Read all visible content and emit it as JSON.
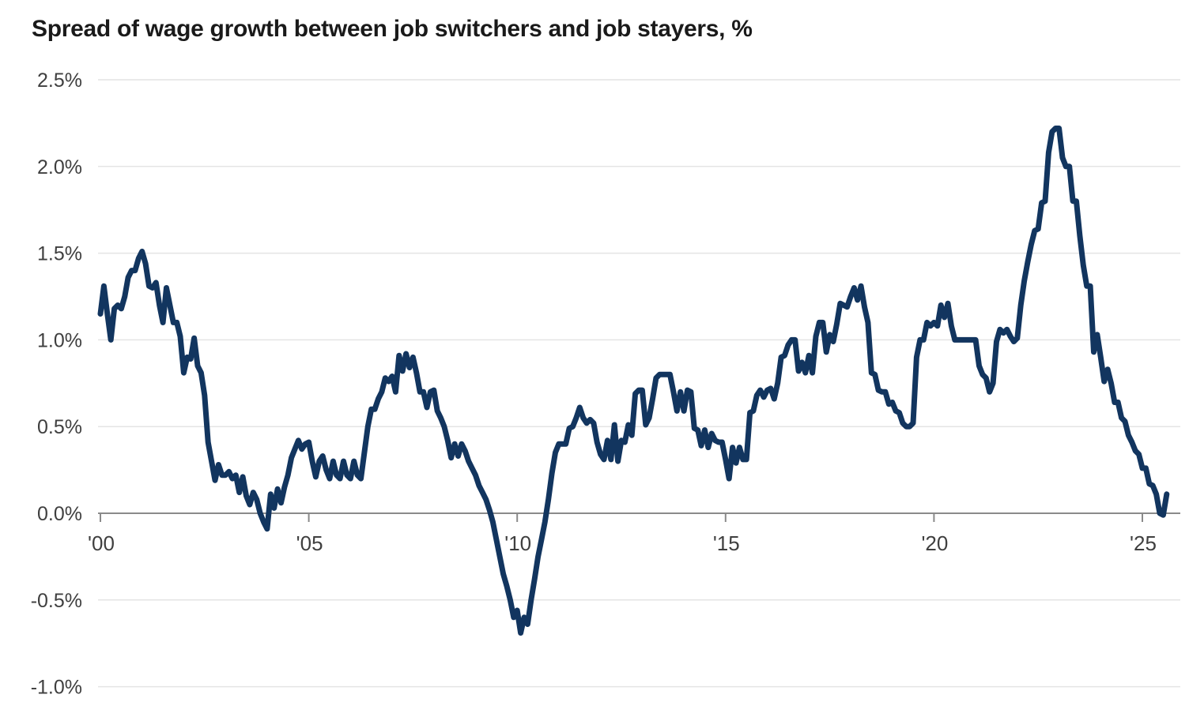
{
  "title": "Spread of wage growth between job switchers and job stayers, %",
  "colors": {
    "line": "#12355f",
    "gridline": "#e4e4e4",
    "axis_line": "#8a8a8a",
    "tick_label": "#3f3f3f",
    "title_text": "#1a1a1a",
    "background": "#ffffff"
  },
  "chart_data": {
    "type": "line",
    "title": "Spread of wage growth between job switchers and job stayers, %",
    "xlabel": "",
    "ylabel": "",
    "grid": true,
    "legend": "none",
    "x_axis": {
      "tick_labels": [
        "'00",
        "'05",
        "'10",
        "'15",
        "'20",
        "'25"
      ],
      "tick_years": [
        2000,
        2005,
        2010,
        2015,
        2020,
        2025
      ],
      "range": [
        2000,
        2025.6
      ]
    },
    "y_axis": {
      "tick_labels": [
        "2.5%",
        "2.0%",
        "1.5%",
        "1.0%",
        "0.5%",
        "0.0%",
        "-0.5%",
        "-1.0%"
      ],
      "tick_values": [
        2.5,
        2.0,
        1.5,
        1.0,
        0.5,
        0.0,
        -0.5,
        -1.0
      ],
      "range": [
        -1.0,
        2.5
      ],
      "unit": "%"
    },
    "series": [
      {
        "name": "Spread of wage growth between job switchers and job stayers",
        "color": "#12355f",
        "x_start_year": 2000,
        "points_per_year": 12,
        "values": [
          1.15,
          1.31,
          1.15,
          1.0,
          1.18,
          1.2,
          1.18,
          1.25,
          1.36,
          1.4,
          1.4,
          1.47,
          1.51,
          1.44,
          1.31,
          1.3,
          1.33,
          1.2,
          1.1,
          1.3,
          1.2,
          1.1,
          1.1,
          1.02,
          0.81,
          0.9,
          0.89,
          1.01,
          0.85,
          0.81,
          0.68,
          0.41,
          0.3,
          0.19,
          0.28,
          0.22,
          0.22,
          0.24,
          0.2,
          0.22,
          0.12,
          0.21,
          0.1,
          0.05,
          0.12,
          0.08,
          0.0,
          -0.05,
          -0.09,
          0.11,
          0.03,
          0.14,
          0.06,
          0.15,
          0.22,
          0.32,
          0.37,
          0.42,
          0.37,
          0.4,
          0.41,
          0.3,
          0.21,
          0.3,
          0.33,
          0.25,
          0.2,
          0.3,
          0.22,
          0.2,
          0.3,
          0.22,
          0.2,
          0.3,
          0.22,
          0.2,
          0.35,
          0.5,
          0.6,
          0.6,
          0.66,
          0.7,
          0.78,
          0.76,
          0.79,
          0.7,
          0.91,
          0.82,
          0.92,
          0.84,
          0.9,
          0.81,
          0.7,
          0.7,
          0.61,
          0.7,
          0.71,
          0.59,
          0.55,
          0.5,
          0.42,
          0.32,
          0.4,
          0.33,
          0.4,
          0.36,
          0.3,
          0.26,
          0.22,
          0.16,
          0.12,
          0.08,
          0.02,
          -0.05,
          -0.15,
          -0.25,
          -0.35,
          -0.42,
          -0.5,
          -0.6,
          -0.56,
          -0.69,
          -0.6,
          -0.64,
          -0.5,
          -0.38,
          -0.25,
          -0.15,
          -0.05,
          0.08,
          0.23,
          0.35,
          0.4,
          0.4,
          0.4,
          0.49,
          0.5,
          0.55,
          0.61,
          0.55,
          0.52,
          0.54,
          0.52,
          0.41,
          0.34,
          0.31,
          0.42,
          0.31,
          0.51,
          0.3,
          0.42,
          0.41,
          0.51,
          0.45,
          0.69,
          0.71,
          0.71,
          0.51,
          0.55,
          0.66,
          0.78,
          0.8,
          0.8,
          0.8,
          0.8,
          0.7,
          0.59,
          0.7,
          0.59,
          0.71,
          0.7,
          0.49,
          0.48,
          0.39,
          0.48,
          0.38,
          0.46,
          0.42,
          0.41,
          0.41,
          0.31,
          0.2,
          0.38,
          0.29,
          0.38,
          0.31,
          0.31,
          0.58,
          0.59,
          0.68,
          0.71,
          0.67,
          0.71,
          0.72,
          0.66,
          0.75,
          0.9,
          0.91,
          0.97,
          1.0,
          1.0,
          0.82,
          0.87,
          0.81,
          0.91,
          0.81,
          1.02,
          1.1,
          1.1,
          0.93,
          1.03,
          0.99,
          1.09,
          1.21,
          1.2,
          1.19,
          1.25,
          1.3,
          1.23,
          1.31,
          1.19,
          1.1,
          0.81,
          0.8,
          0.71,
          0.7,
          0.7,
          0.63,
          0.64,
          0.59,
          0.58,
          0.52,
          0.5,
          0.5,
          0.52,
          0.9,
          1.0,
          1.0,
          1.1,
          1.08,
          1.1,
          1.08,
          1.2,
          1.13,
          1.21,
          1.08,
          1.0,
          1.0,
          1.0,
          1.0,
          1.0,
          1.0,
          1.0,
          0.85,
          0.8,
          0.78,
          0.7,
          0.75,
          0.99,
          1.06,
          1.04,
          1.06,
          1.02,
          0.99,
          1.01,
          1.2,
          1.34,
          1.45,
          1.55,
          1.63,
          1.64,
          1.79,
          1.8,
          2.08,
          2.2,
          2.22,
          2.22,
          2.05,
          2.0,
          2.0,
          1.8,
          1.8,
          1.6,
          1.43,
          1.31,
          1.31,
          0.93,
          1.03,
          0.9,
          0.76,
          0.83,
          0.75,
          0.64,
          0.64,
          0.55,
          0.53,
          0.45,
          0.41,
          0.36,
          0.34,
          0.26,
          0.26,
          0.17,
          0.16,
          0.11,
          0.0,
          -0.01,
          0.11
        ]
      }
    ]
  }
}
